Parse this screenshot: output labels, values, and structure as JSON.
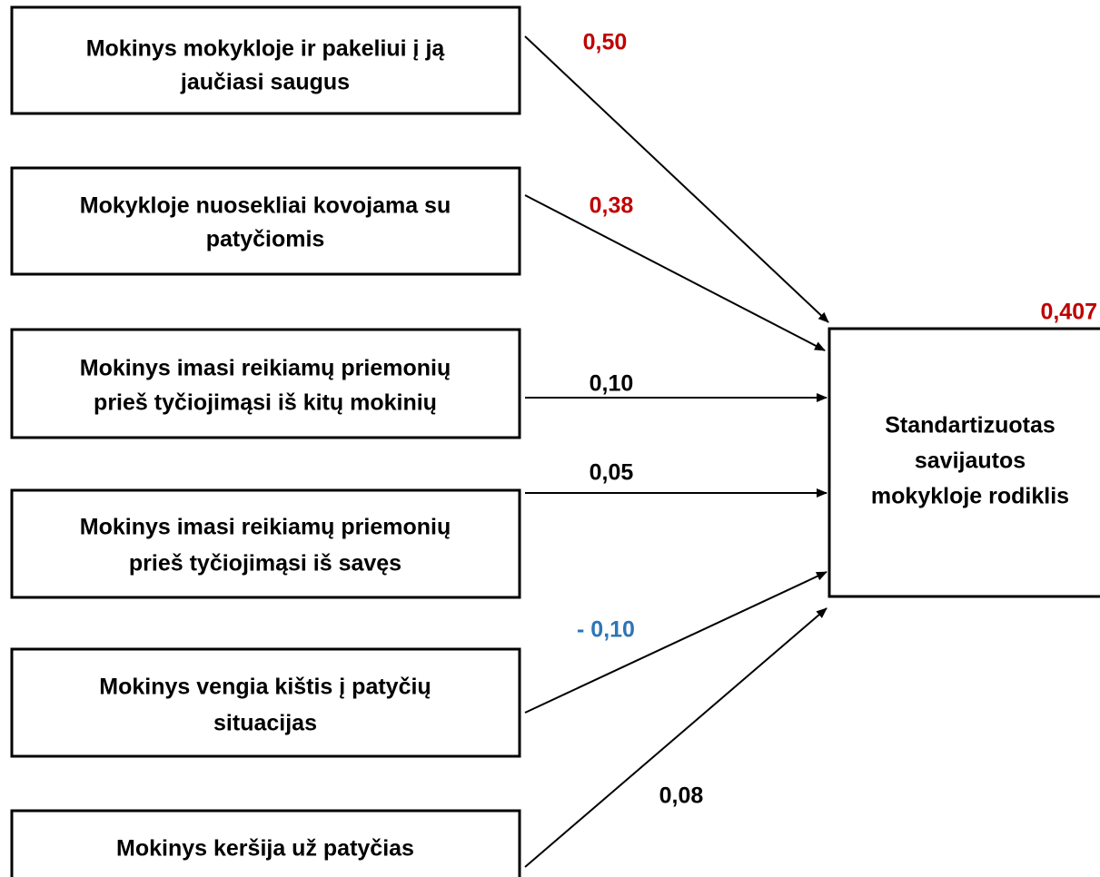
{
  "nodes": [
    {
      "lines": [
        "Mokinys mokykloje ir pakeliui į ją",
        "jaučiasi saugus"
      ]
    },
    {
      "lines": [
        "Mokykloje nuosekliai kovojama su",
        "patyčiomis"
      ]
    },
    {
      "lines": [
        "Mokinys imasi reikiamų priemonių",
        "prieš tyčiojimąsi iš kitų mokinių"
      ]
    },
    {
      "lines": [
        "Mokinys imasi reikiamų priemonių",
        "prieš tyčiojimąsi iš savęs"
      ]
    },
    {
      "lines": [
        "Mokinys vengia kištis į patyčių",
        "situacijas"
      ]
    },
    {
      "lines": [
        "Mokinys keršija už patyčias"
      ]
    }
  ],
  "target": {
    "lines": [
      "Standartizuotas",
      "savijautos",
      "mokykloje rodiklis"
    ],
    "label": "0,407",
    "color": "#c00000"
  },
  "edges": [
    {
      "label": "0,50",
      "color": "#c00000"
    },
    {
      "label": "0,38",
      "color": "#c00000"
    },
    {
      "label": "0,10",
      "color": "#000000"
    },
    {
      "label": "0,05",
      "color": "#000000"
    },
    {
      "label": "- 0,10",
      "color": "#2e75b6"
    },
    {
      "label": "0,08",
      "color": "#000000"
    }
  ]
}
